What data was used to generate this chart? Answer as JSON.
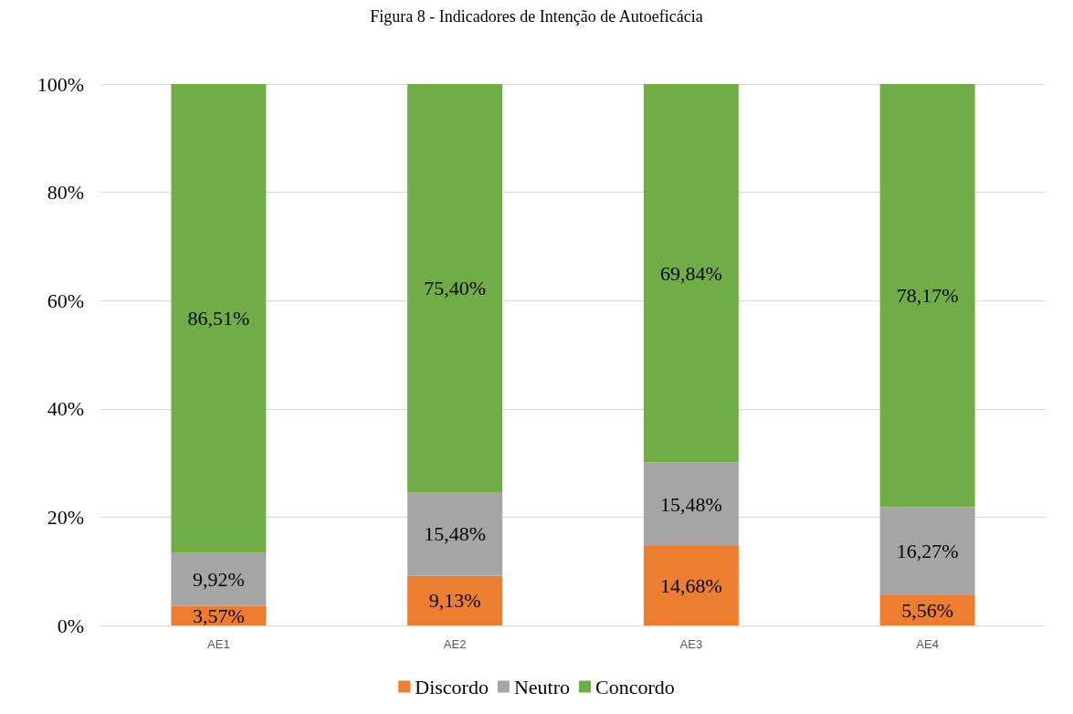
{
  "chart_data": {
    "type": "bar",
    "title": "Figura 8 - Indicadores de Intenção de Autoeficácia",
    "categories": [
      "AE1",
      "AE2",
      "AE3",
      "AE4"
    ],
    "stacked": true,
    "series": [
      {
        "name": "Discordo",
        "color": "#ed7d31",
        "values": [
          3.57,
          9.13,
          14.68,
          5.56
        ],
        "value_labels": [
          "3,57%",
          "9,13%",
          "14,68%",
          "5,56%"
        ]
      },
      {
        "name": "Neutro",
        "color": "#a5a5a5",
        "values": [
          9.92,
          15.48,
          15.48,
          16.27
        ],
        "value_labels": [
          "9,92%",
          "15,48%",
          "15,48%",
          "16,27%"
        ]
      },
      {
        "name": "Concordo",
        "color": "#70ad47",
        "values": [
          86.51,
          75.4,
          69.84,
          78.17
        ],
        "value_labels": [
          "86,51%",
          "75,40%",
          "69,84%",
          "78,17%"
        ]
      }
    ],
    "ylim": [
      0,
      100
    ],
    "yticks": [
      {
        "value": 0,
        "label": "0%"
      },
      {
        "value": 20,
        "label": "20%"
      },
      {
        "value": 40,
        "label": "40%"
      },
      {
        "value": 60,
        "label": "60%"
      },
      {
        "value": 80,
        "label": "80%"
      },
      {
        "value": 100,
        "label": "100%"
      }
    ],
    "grid": "y",
    "legend": "bottom"
  }
}
